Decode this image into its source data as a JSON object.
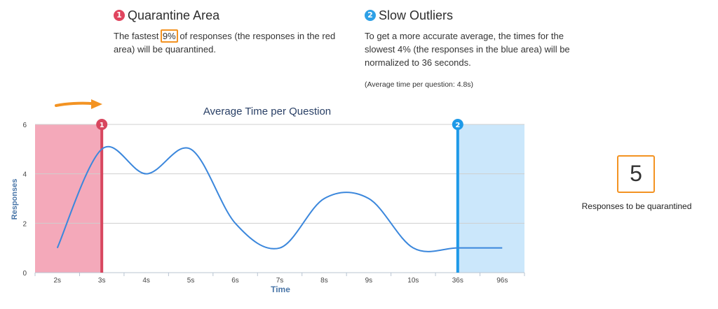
{
  "quarantine": {
    "badge": "1",
    "title": "Quarantine Area",
    "text_before": "The fastest ",
    "percent": "9%",
    "text_after": " of responses (the responses in the red area) will be quarantined.",
    "color": "#e0455f"
  },
  "outliers": {
    "badge": "2",
    "title": "Slow Outliers",
    "text": "To get a more accurate average, the times for the slowest 4% (the responses in the blue area) will be normalized to 36 seconds.",
    "color": "#2ea0e6"
  },
  "avg_note": "(Average time per question: 4.8s)",
  "count": {
    "value": "5",
    "label": "Responses to be quarantined"
  },
  "annotation": {
    "color": "#f39322",
    "icon": "arrow-right-icon"
  },
  "chart_data": {
    "type": "line",
    "title": "Average Time per Question",
    "xlabel": "Time",
    "ylabel": "Responses",
    "categories": [
      "2s",
      "3s",
      "4s",
      "5s",
      "6s",
      "7s",
      "8s",
      "9s",
      "10s",
      "36s",
      "96s"
    ],
    "values": [
      1,
      5,
      4,
      5,
      2,
      1,
      3,
      3,
      1,
      1,
      1
    ],
    "yticks": [
      "0",
      "2",
      "4",
      "6"
    ],
    "ylim": [
      0,
      6
    ],
    "grid": true,
    "line_color": "#3b87dc",
    "quarantine_marker": {
      "label": "1",
      "at_category": "3s",
      "color": "#d8475f",
      "fill": "#f4a9ba"
    },
    "outlier_marker": {
      "label": "2",
      "at_category": "36s",
      "color": "#1e9ae8",
      "fill": "#cbe7fb"
    }
  }
}
